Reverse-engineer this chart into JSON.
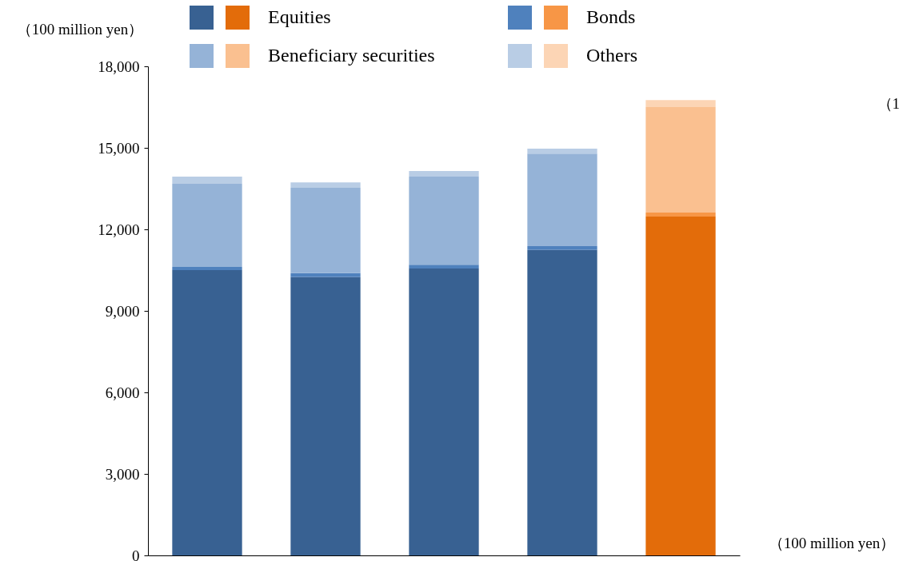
{
  "chart_data": {
    "type": "bar",
    "stacked": true,
    "categories": [
      null,
      null,
      null,
      null,
      null
    ],
    "series": [
      {
        "name": "Equities",
        "colors": [
          "#386192",
          "#386192",
          "#386192",
          "#386192",
          "#e36c0a"
        ],
        "values": [
          10500,
          10240,
          10560,
          11240,
          12470
        ]
      },
      {
        "name": "Bonds",
        "colors": [
          "#4f81bd",
          "#4f81bd",
          "#4f81bd",
          "#4f81bd",
          "#f79646"
        ],
        "values": [
          120,
          150,
          140,
          140,
          150
        ]
      },
      {
        "name": "Beneficiary securities",
        "colors": [
          "#95b3d7",
          "#95b3d7",
          "#95b3d7",
          "#95b3d7",
          "#fac090"
        ],
        "values": [
          3060,
          3140,
          3240,
          3410,
          3880
        ]
      },
      {
        "name": "Others",
        "colors": [
          "#b9cde5",
          "#b9cde5",
          "#b9cde5",
          "#b9cde5",
          "#fcd5b5"
        ],
        "values": [
          260,
          200,
          210,
          180,
          260
        ]
      }
    ],
    "ylim": [
      0,
      18000
    ],
    "yticks": [
      0,
      {
        "value": 3000,
        "label": "3,000"
      },
      {
        "value": 6000,
        "label": "6,000"
      },
      {
        "value": 9000,
        "label": "9,000"
      },
      {
        "value": 12000,
        "label": "12,000"
      },
      {
        "value": 15000,
        "label": "15,000"
      },
      {
        "value": 18000,
        "label": "18,000"
      }
    ],
    "ylabel": "（100 million yen）",
    "xlabel": "（100 million yen）",
    "annotations": [
      "（1"
    ],
    "legend": "top",
    "grid": false,
    "tick_labels": "y"
  }
}
